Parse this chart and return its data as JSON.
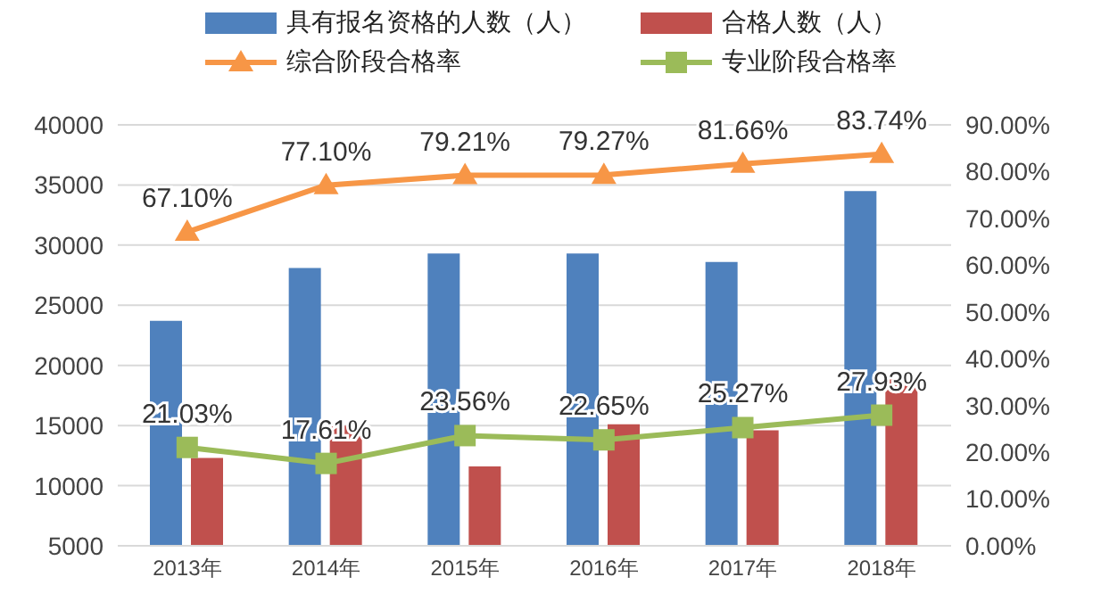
{
  "chart_data": {
    "type": "bar",
    "categories": [
      "2013年",
      "2014年",
      "2015年",
      "2016年",
      "2017年",
      "2018年"
    ],
    "series": [
      {
        "name": "具有报名资格的人数（人）",
        "color": "#4f81bd",
        "values": [
          23700,
          28100,
          29300,
          29300,
          28600,
          34500
        ]
      },
      {
        "name": "合格人数（人）",
        "color": "#c0504d",
        "values": [
          12300,
          15000,
          11600,
          15100,
          14600,
          18900
        ]
      },
      {
        "name": "综合阶段合格率",
        "type": "line",
        "axis": "y2",
        "marker": "triangle",
        "color": "#f79646",
        "values": [
          67.1,
          77.1,
          79.21,
          79.27,
          81.66,
          83.74
        ],
        "value_labels": [
          "67.10%",
          "77.10%",
          "79.21%",
          "79.27%",
          "81.66%",
          "83.74%"
        ]
      },
      {
        "name": "专业阶段合格率",
        "type": "line",
        "axis": "y2",
        "marker": "square",
        "color": "#9bbb59",
        "values": [
          21.03,
          17.61,
          23.56,
          22.65,
          25.27,
          27.93
        ],
        "value_labels": [
          "21.03%",
          "17.61%",
          "23.56%",
          "22.65%",
          "25.27%",
          "27.93%"
        ]
      }
    ],
    "ylim": [
      5000,
      40000
    ],
    "yticks": [
      5000,
      10000,
      15000,
      20000,
      25000,
      30000,
      35000,
      40000
    ],
    "y2lim": [
      0,
      90
    ],
    "y2ticks": [
      {
        "value": 0,
        "label": "0.00%"
      },
      {
        "value": 10,
        "label": "10.00%"
      },
      {
        "value": 20,
        "label": "20.00%"
      },
      {
        "value": 30,
        "label": "30.00%"
      },
      {
        "value": 40,
        "label": "40.00%"
      },
      {
        "value": 50,
        "label": "50.00%"
      },
      {
        "value": 60,
        "label": "60.00%"
      },
      {
        "value": 70,
        "label": "70.00%"
      },
      {
        "value": 80,
        "label": "80.00%"
      },
      {
        "value": 90,
        "label": "90.00%"
      }
    ],
    "grid": "y",
    "legend": "top"
  }
}
